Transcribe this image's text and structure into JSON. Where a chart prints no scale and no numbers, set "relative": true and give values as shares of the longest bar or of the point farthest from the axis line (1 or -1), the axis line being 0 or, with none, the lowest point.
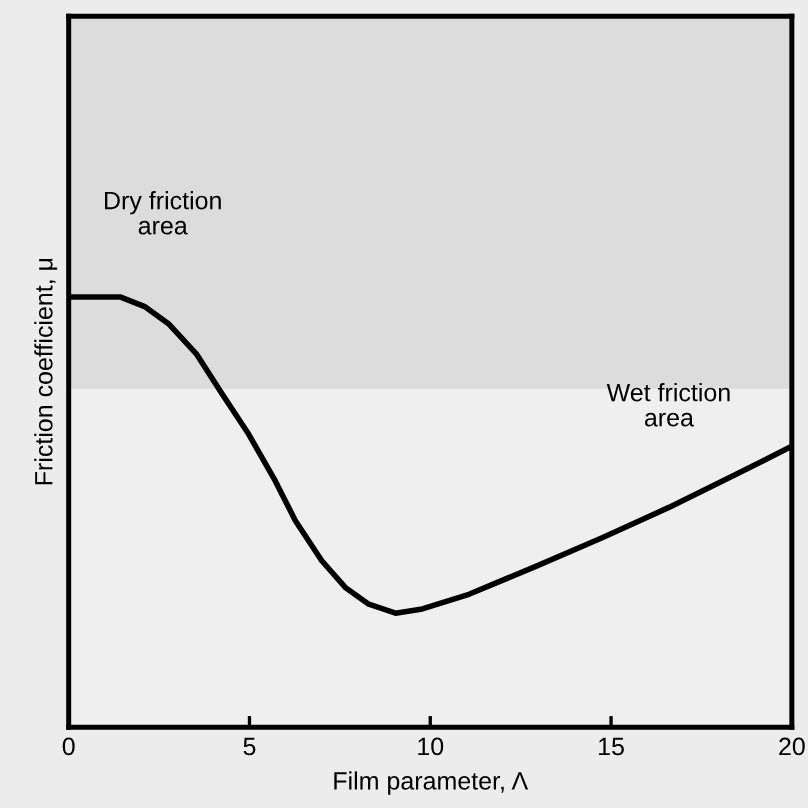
{
  "chart_data": {
    "type": "line",
    "relative": true,
    "xlabel": "Film parameter, Λ",
    "ylabel": "Friction coefficient, μ",
    "x": [
      0,
      1.44,
      2.12,
      2.76,
      3.53,
      4.24,
      4.98,
      5.71,
      6.27,
      7.0,
      7.65,
      8.3,
      9.04,
      9.78,
      11.07,
      12.92,
      14.77,
      16.6,
      18.46,
      20
    ],
    "series": [
      {
        "color": "#000000",
        "values": [
          1,
          1,
          0.977,
          0.938,
          0.868,
          0.775,
          0.681,
          0.573,
          0.48,
          0.387,
          0.325,
          0.286,
          0.265,
          0.275,
          0.309,
          0.374,
          0.441,
          0.511,
          0.588,
          0.653
        ]
      }
    ],
    "xlim": [
      0,
      20
    ],
    "xticks": [
      0,
      5,
      10,
      15,
      20
    ],
    "bands": [
      {
        "axis": "y",
        "from": 0.787,
        "to": 1.653,
        "color": "#dcdcdc"
      }
    ],
    "annotations": [
      "Dry friction\narea",
      "Wet friction\narea"
    ],
    "grid": false,
    "legend": false,
    "marker": "none",
    "line_style": "solid"
  }
}
